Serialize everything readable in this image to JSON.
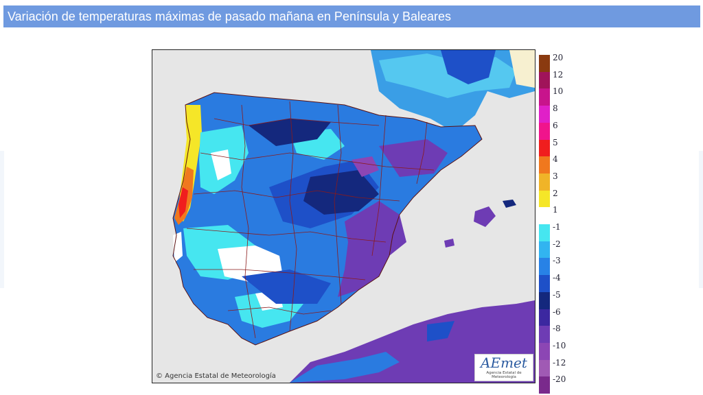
{
  "header": {
    "title": "Variación de temperaturas máximas de pasado mañana en Península y Baleares"
  },
  "map": {
    "credit": "© Agencia Estatal de Meteorología",
    "logo_text": "AEmet",
    "logo_subtitle": "Agencia Estatal de Meteorología"
  },
  "legend": {
    "items": [
      {
        "label": "20",
        "color": "#8a3a10"
      },
      {
        "label": "12",
        "color": "#a0145a"
      },
      {
        "label": "10",
        "color": "#c8148c"
      },
      {
        "label": "8",
        "color": "#e020c8"
      },
      {
        "label": "6",
        "color": "#f0148c"
      },
      {
        "label": "5",
        "color": "#f01e1e"
      },
      {
        "label": "4",
        "color": "#f0781e"
      },
      {
        "label": "3",
        "color": "#f0b428"
      },
      {
        "label": "2",
        "color": "#f5e628"
      },
      {
        "label": "1",
        "color": "#ffffff"
      },
      {
        "label": "-1",
        "color": "#46e6f0"
      },
      {
        "label": "-2",
        "color": "#32b4f0"
      },
      {
        "label": "-3",
        "color": "#2882e6"
      },
      {
        "label": "-4",
        "color": "#1e50c8"
      },
      {
        "label": "-5",
        "color": "#14287d"
      },
      {
        "label": "-6",
        "color": "#3c28a0"
      },
      {
        "label": "-8",
        "color": "#6e3cb4"
      },
      {
        "label": "-10",
        "color": "#8c46b4"
      },
      {
        "label": "-12",
        "color": "#a05ab4"
      },
      {
        "label": "-20",
        "color": "#7a2a8c"
      }
    ]
  },
  "colors": {
    "header_bg": "#6f9ae0",
    "sea": "#e6e6e6",
    "border_lines": "#8b1a1a"
  }
}
